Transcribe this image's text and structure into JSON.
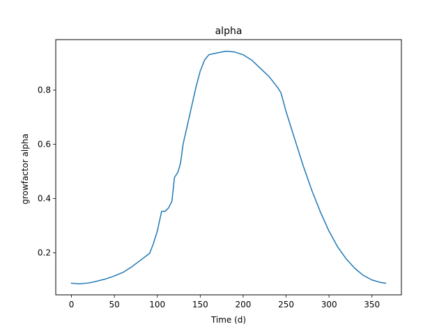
{
  "chart_data": {
    "type": "line",
    "title": "alpha",
    "xlabel": "Time (d)",
    "ylabel": "growfactor alpha",
    "xlim": [
      -18.3,
      384.3
    ],
    "ylim": [
      0.0453,
      0.9856
    ],
    "xticks": [
      0,
      50,
      100,
      150,
      200,
      250,
      300,
      350
    ],
    "yticks": [
      0.2,
      0.4,
      0.6,
      0.8
    ],
    "ytick_labels": [
      "0.2",
      "0.4",
      "0.6",
      "0.8"
    ],
    "grid": false,
    "legend": "none",
    "series": [
      {
        "color": "#1f77b4",
        "points": [
          [
            0,
            0.088
          ],
          [
            10,
            0.086
          ],
          [
            20,
            0.089
          ],
          [
            30,
            0.096
          ],
          [
            40,
            0.104
          ],
          [
            50,
            0.115
          ],
          [
            60,
            0.128
          ],
          [
            70,
            0.148
          ],
          [
            80,
            0.172
          ],
          [
            91,
            0.198
          ],
          [
            95,
            0.23
          ],
          [
            100,
            0.28
          ],
          [
            105,
            0.353
          ],
          [
            109,
            0.353
          ],
          [
            113,
            0.365
          ],
          [
            117,
            0.39
          ],
          [
            120,
            0.478
          ],
          [
            124,
            0.497
          ],
          [
            127,
            0.53
          ],
          [
            130,
            0.6
          ],
          [
            135,
            0.67
          ],
          [
            140,
            0.74
          ],
          [
            145,
            0.81
          ],
          [
            150,
            0.87
          ],
          [
            155,
            0.91
          ],
          [
            160,
            0.93
          ],
          [
            170,
            0.937
          ],
          [
            180,
            0.943
          ],
          [
            190,
            0.94
          ],
          [
            200,
            0.93
          ],
          [
            210,
            0.91
          ],
          [
            220,
            0.88
          ],
          [
            230,
            0.85
          ],
          [
            240,
            0.81
          ],
          [
            244,
            0.79
          ],
          [
            250,
            0.72
          ],
          [
            260,
            0.62
          ],
          [
            270,
            0.52
          ],
          [
            280,
            0.43
          ],
          [
            290,
            0.35
          ],
          [
            300,
            0.28
          ],
          [
            310,
            0.222
          ],
          [
            320,
            0.178
          ],
          [
            330,
            0.143
          ],
          [
            340,
            0.117
          ],
          [
            350,
            0.1
          ],
          [
            360,
            0.091
          ],
          [
            366,
            0.088
          ]
        ]
      }
    ]
  }
}
